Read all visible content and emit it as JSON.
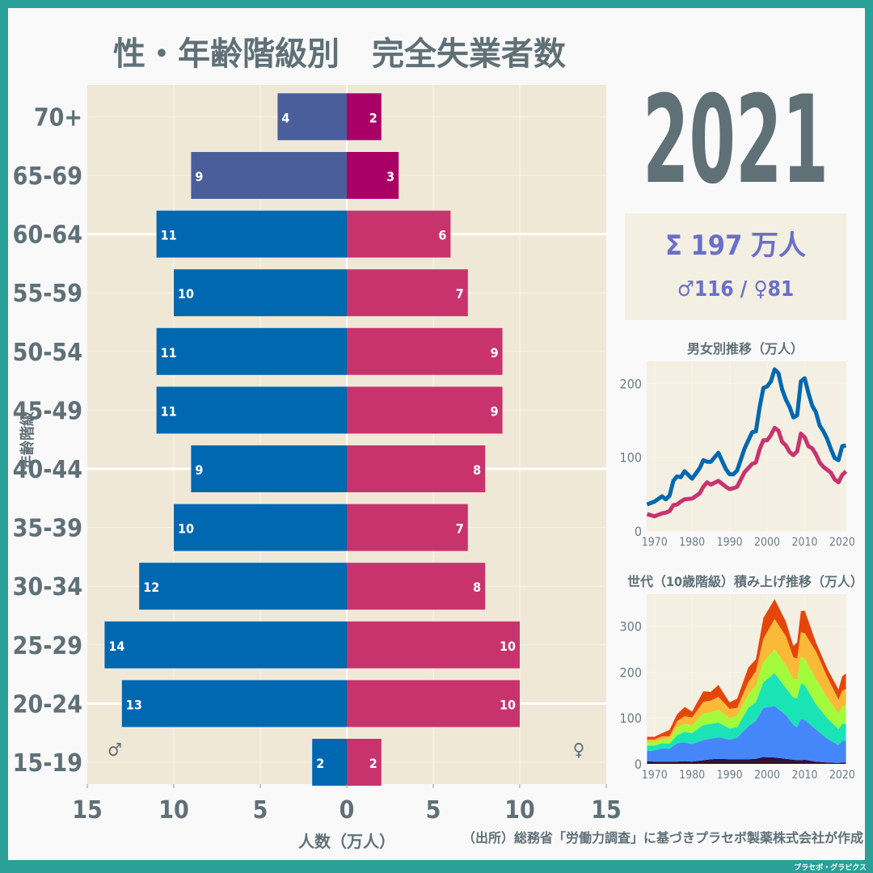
{
  "title": "性・年齢階級別　完全失業者数",
  "year": "2021",
  "summary": {
    "total": "Σ 197 万人",
    "breakdown": "♂116 / ♀81"
  },
  "source": "（出所）総務省「労働力調査」に基づきプラセボ製薬株式会社が作成",
  "credit": "プラセボ・グラピクス",
  "colors": {
    "male": "#0068b0",
    "female": "#c8336e",
    "male_65plus": "#4a5e9c",
    "female_65plus": "#aa0066",
    "frame": "#2aa198",
    "plot_bg": "#f0e8d6"
  },
  "chart_data": [
    {
      "type": "bar",
      "orientation": "horizontal-pyramid",
      "ylabel": "年齢階級",
      "xlabel": "人数（万人）",
      "xlim": [
        -15,
        15
      ],
      "xticks": [
        "15",
        "10",
        "5",
        "0",
        "5",
        "10",
        "15"
      ],
      "male_symbol": "♂",
      "female_symbol": "♀",
      "categories": [
        "15-19",
        "20-24",
        "25-29",
        "30-34",
        "35-39",
        "40-44",
        "45-49",
        "50-54",
        "55-59",
        "60-64",
        "65-69",
        "70+"
      ],
      "series": [
        {
          "name": "♂",
          "values": [
            2,
            13,
            14,
            12,
            10,
            9,
            11,
            11,
            10,
            11,
            9,
            4
          ]
        },
        {
          "name": "♀",
          "values": [
            2,
            10,
            10,
            8,
            7,
            8,
            9,
            9,
            7,
            6,
            3,
            2
          ]
        }
      ]
    },
    {
      "type": "line",
      "title": "男女別推移（万人）",
      "ylim": [
        0,
        230
      ],
      "yticks": [
        "0",
        "100",
        "200"
      ],
      "xticks": [
        "1970",
        "1980",
        "1990",
        "2000",
        "2010",
        "2020"
      ],
      "x": [
        1968,
        1970,
        1972,
        1973,
        1974,
        1975,
        1976,
        1977,
        1978,
        1980,
        1982,
        1983,
        1984,
        1985,
        1987,
        1989,
        1990,
        1991,
        1992,
        1994,
        1996,
        1997,
        1998,
        1999,
        2000,
        2001,
        2002,
        2003,
        2004,
        2005,
        2006,
        2007,
        2008,
        2009,
        2010,
        2011,
        2012,
        2013,
        2014,
        2015,
        2016,
        2017,
        2018,
        2019,
        2020,
        2021
      ],
      "series": [
        {
          "values": [
            36,
            40,
            47,
            43,
            48,
            68,
            74,
            73,
            81,
            71,
            85,
            96,
            94,
            94,
            106,
            84,
            77,
            77,
            82,
            112,
            134,
            135,
            168,
            194,
            196,
            203,
            219,
            214,
            192,
            178,
            168,
            154,
            157,
            203,
            207,
            187,
            170,
            161,
            143,
            135,
            125,
            111,
            99,
            96,
            115,
            116
          ]
        },
        {
          "values": [
            23,
            20,
            24,
            25,
            27,
            35,
            36,
            40,
            43,
            44,
            51,
            60,
            66,
            63,
            68,
            60,
            57,
            58,
            60,
            80,
            91,
            93,
            111,
            123,
            123,
            130,
            140,
            136,
            121,
            116,
            107,
            103,
            108,
            132,
            127,
            115,
            112,
            104,
            93,
            87,
            83,
            79,
            70,
            66,
            76,
            81
          ]
        }
      ]
    },
    {
      "type": "area",
      "stacked": true,
      "title": "世代（10歳階級）積み上げ推移（万人）",
      "ylim": [
        0,
        370
      ],
      "yticks": [
        "0",
        "100",
        "200",
        "300"
      ],
      "xticks": [
        "1970",
        "1980",
        "1990",
        "2000",
        "2010",
        "2020"
      ],
      "x": [
        1968,
        1970,
        1972,
        1974,
        1976,
        1978,
        1980,
        1983,
        1985,
        1987,
        1990,
        1992,
        1995,
        1997,
        1999,
        2002,
        2005,
        2007,
        2008,
        2009,
        2010,
        2013,
        2016,
        2019,
        2020,
        2021
      ],
      "series": [
        {
          "color": "#30123b",
          "values": [
            6,
            5,
            5,
            5,
            5,
            6,
            5,
            8,
            10,
            11,
            10,
            10,
            10,
            11,
            15,
            14,
            11,
            9,
            8,
            8,
            9,
            5,
            3,
            2,
            3,
            3
          ]
        },
        {
          "color": "#4686fb",
          "values": [
            22,
            24,
            29,
            28,
            40,
            41,
            38,
            44,
            45,
            47,
            43,
            47,
            72,
            83,
            107,
            112,
            95,
            76,
            72,
            89,
            87,
            70,
            52,
            39,
            47,
            48
          ]
        },
        {
          "color": "#1ae4b6",
          "values": [
            12,
            11,
            11,
            11,
            17,
            23,
            24,
            33,
            32,
            32,
            24,
            23,
            40,
            41,
            56,
            72,
            59,
            60,
            63,
            78,
            76,
            55,
            45,
            35,
            37,
            37
          ]
        },
        {
          "color": "#a2fc3c",
          "values": [
            8,
            8,
            8,
            10,
            18,
            17,
            17,
            25,
            25,
            28,
            23,
            25,
            30,
            35,
            44,
            52,
            50,
            40,
            42,
            58,
            58,
            55,
            45,
            34,
            38,
            40
          ]
        },
        {
          "color": "#fbb938",
          "values": [
            5,
            5,
            7,
            6,
            13,
            17,
            17,
            25,
            26,
            28,
            20,
            17,
            26,
            32,
            51,
            66,
            63,
            47,
            45,
            54,
            55,
            60,
            45,
            30,
            35,
            35
          ]
        },
        {
          "color": "#e4460a",
          "values": [
            6,
            6,
            7,
            14,
            15,
            20,
            13,
            23,
            19,
            26,
            14,
            20,
            32,
            26,
            45,
            43,
            32,
            25,
            35,
            46,
            49,
            20,
            18,
            22,
            31,
            34
          ]
        }
      ]
    }
  ]
}
